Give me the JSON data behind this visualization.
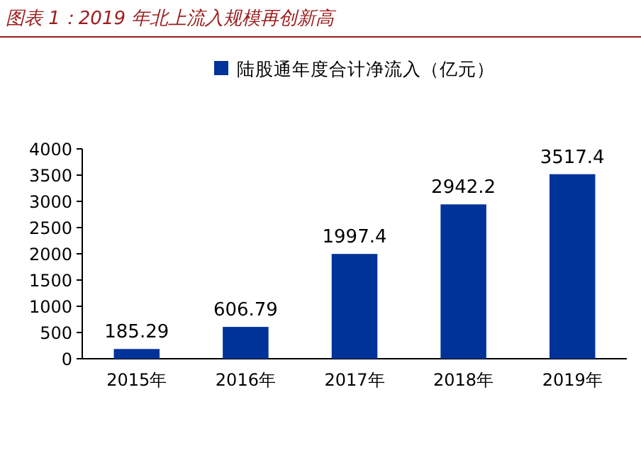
{
  "chart_data": {
    "type": "bar",
    "title": "图表 1：2019 年北上流入规模再创新高",
    "categories": [
      "2015年",
      "2016年",
      "2017年",
      "2018年",
      "2019年"
    ],
    "series": [
      {
        "name": "陆股通年度合计净流入（亿元）",
        "color": "#003399",
        "values": [
          185.29,
          606.79,
          1997.4,
          2942.2,
          3517.4
        ]
      }
    ],
    "ylim": [
      0,
      4000
    ],
    "yticks": [
      0,
      500,
      1000,
      1500,
      2000,
      2500,
      3000,
      3500,
      4000
    ],
    "data_labels": true,
    "legend": "top"
  }
}
